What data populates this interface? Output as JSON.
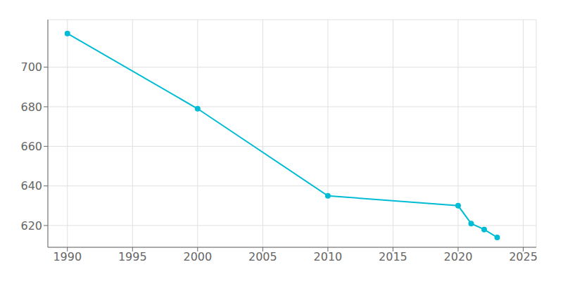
{
  "chart_data": {
    "type": "line",
    "x": [
      1990,
      2000,
      2010,
      2020,
      2021,
      2022,
      2023
    ],
    "values": [
      717,
      679,
      635,
      630,
      621,
      618,
      614
    ],
    "color": "#00bcd4",
    "marker": "circle",
    "xlim": [
      1988.5,
      2026
    ],
    "ylim": [
      609,
      724
    ],
    "xticks": [
      1990,
      1995,
      2000,
      2005,
      2010,
      2015,
      2020,
      2025
    ],
    "yticks": [
      620,
      640,
      660,
      680,
      700
    ],
    "grid": true
  }
}
